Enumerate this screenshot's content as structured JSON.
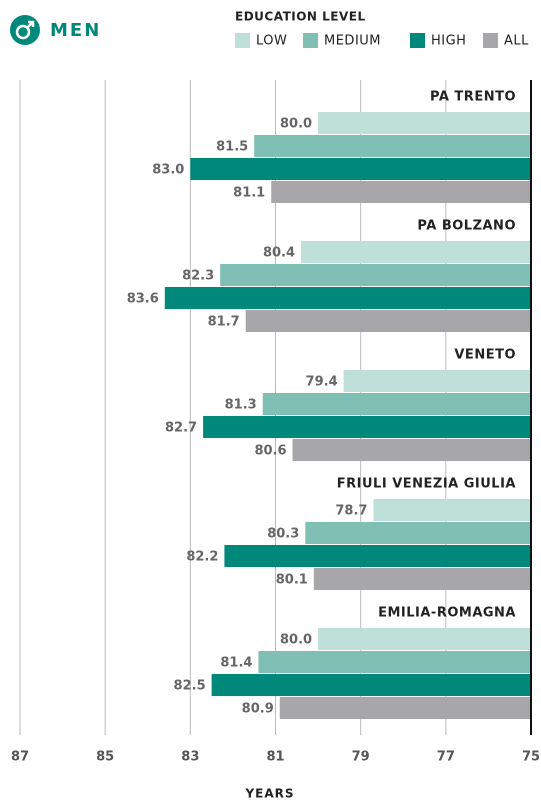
{
  "chart_data": {
    "type": "bar",
    "orientation": "horizontal",
    "title": "MEN",
    "legend_title": "EDUCATION LEVEL",
    "xlabel": "YEARS",
    "categories": [
      "PA TRENTO",
      "PA BOLZANO",
      "VENETO",
      "FRIULI VENEZIA GIULIA",
      "EMILIA-ROMAGNA"
    ],
    "series": [
      {
        "name": "LOW",
        "color": "#bfdfd9",
        "values": [
          80.0,
          80.4,
          79.4,
          78.7,
          80.0
        ],
        "value_labels": [
          "80.0",
          "80.4",
          "79.4",
          "78.7",
          "80.0"
        ]
      },
      {
        "name": "MEDIUM",
        "color": "#80bfb3",
        "values": [
          81.5,
          82.3,
          81.3,
          80.3,
          81.4
        ],
        "value_labels": [
          "81.5",
          "82.3",
          "81.3",
          "80.3",
          "81.4"
        ]
      },
      {
        "name": "HIGH",
        "color": "#00897b",
        "values": [
          83.0,
          83.6,
          82.7,
          82.2,
          82.5
        ],
        "value_labels": [
          "83.0",
          "83.6",
          "82.7",
          "82.2",
          "82.5"
        ]
      },
      {
        "name": "ALL",
        "color": "#a7a7a9",
        "values": [
          81.1,
          81.7,
          80.6,
          80.1,
          80.9
        ],
        "value_labels": [
          "81.1",
          "81.7",
          "80.6",
          "80.1",
          "80.9"
        ]
      }
    ],
    "xlim": [
      87,
      75
    ],
    "xticks": [
      87,
      85,
      83,
      81,
      79,
      77,
      75
    ],
    "grid": true
  }
}
